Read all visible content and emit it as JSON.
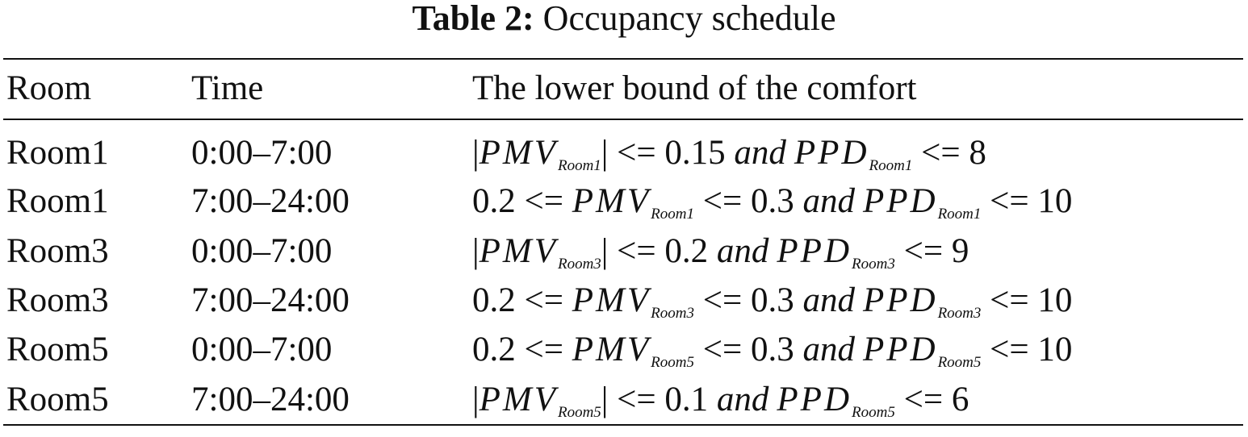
{
  "caption": {
    "label": "Table 2:",
    "title": "Occupancy schedule"
  },
  "table": {
    "headers": [
      "Room",
      "Time",
      "The lower bound of the comfort"
    ],
    "rows": [
      {
        "room": "Room1",
        "time": "0:00–7:00",
        "comfort": {
          "pre": "|",
          "var1": "PMV",
          "sub1": "Room1",
          "mid1": "| <= 0.15 ",
          "and": "and",
          "var2": "PPD",
          "sub2": "Room1",
          "post": " <= 8"
        }
      },
      {
        "room": "Room1",
        "time": "7:00–24:00",
        "comfort": {
          "pre": "0.2 <= ",
          "var1": "PMV",
          "sub1": "Room1",
          "mid1": " <= 0.3 ",
          "and": "and",
          "var2": "PPD",
          "sub2": "Room1",
          "post": " <= 10"
        }
      },
      {
        "room": "Room3",
        "time": "0:00–7:00",
        "comfort": {
          "pre": "|",
          "var1": "PMV",
          "sub1": "Room3",
          "mid1": "| <= 0.2 ",
          "and": "and",
          "var2": "PPD",
          "sub2": "Room3",
          "post": " <= 9"
        }
      },
      {
        "room": "Room3",
        "time": "7:00–24:00",
        "comfort": {
          "pre": "0.2 <= ",
          "var1": "PMV",
          "sub1": "Room3",
          "mid1": " <= 0.3 ",
          "and": "and",
          "var2": "PPD",
          "sub2": "Room3",
          "post": " <= 10"
        }
      },
      {
        "room": "Room5",
        "time": "0:00–7:00",
        "comfort": {
          "pre": "0.2 <= ",
          "var1": "PMV",
          "sub1": "Room5",
          "mid1": " <= 0.3 ",
          "and": "and",
          "var2": "PPD",
          "sub2": "Room5",
          "post": " <= 10"
        }
      },
      {
        "room": "Room5",
        "time": "7:00–24:00",
        "comfort": {
          "pre": "|",
          "var1": "PMV",
          "sub1": "Room5",
          "mid1": "| <= 0.1 ",
          "and": "and",
          "var2": "PPD",
          "sub2": "Room5",
          "post": " <= 6"
        }
      }
    ]
  }
}
